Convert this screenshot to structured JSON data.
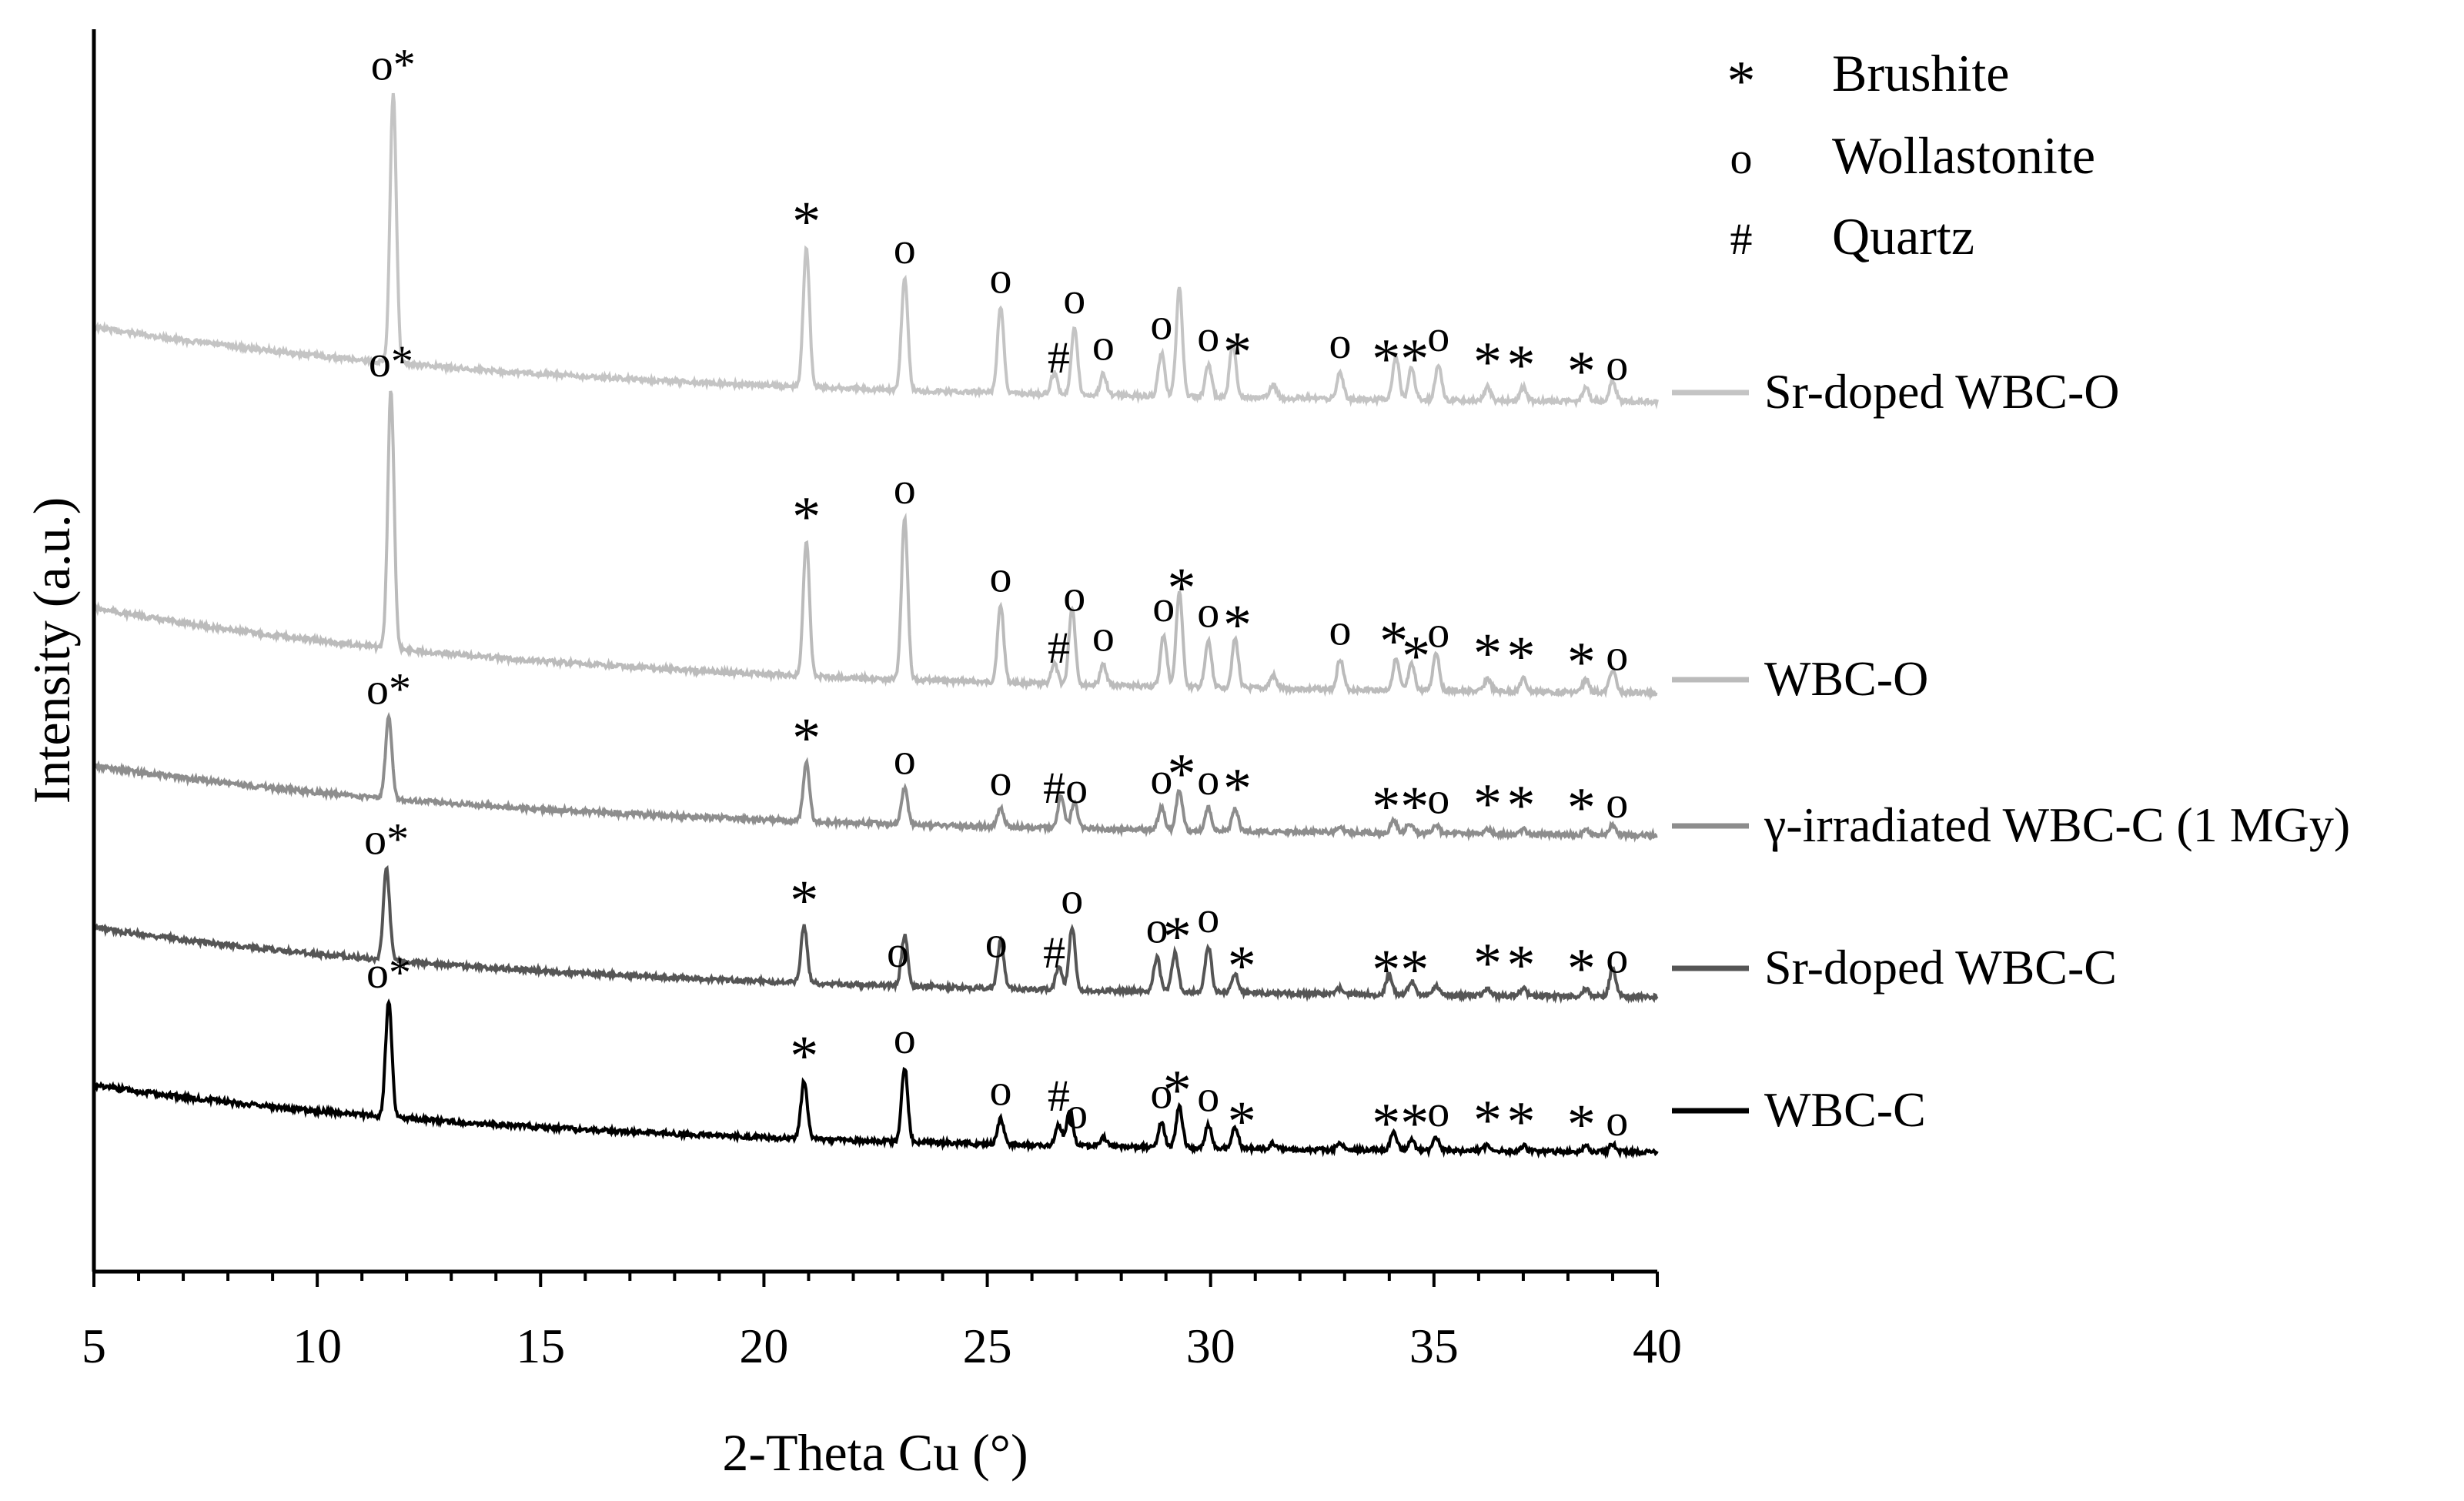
{
  "chart_data": {
    "type": "line",
    "title": "",
    "xlabel": "2-Theta Cu (°)",
    "ylabel": "Intensity (a.u.)",
    "xlim": [
      5,
      40
    ],
    "xticks": [
      5,
      10,
      15,
      20,
      25,
      30,
      35,
      40
    ],
    "xtick_labels": [
      "5",
      "10",
      "15",
      "20",
      "25",
      "30",
      "35",
      "40"
    ],
    "legend": [
      {
        "symbol": "*",
        "label": "Brushite"
      },
      {
        "symbol": "o",
        "label": "Wollastonite"
      },
      {
        "symbol": "#",
        "label": "Quartz"
      }
    ],
    "series": [
      {
        "name": "Sr-doped WBC-O",
        "color": "#c4c4c4",
        "peaks": [
          [
            11.7,
            1.0
          ],
          [
            20.95,
            0.52
          ],
          [
            23.15,
            0.42
          ],
          [
            25.3,
            0.32
          ],
          [
            26.5,
            0.08
          ],
          [
            26.95,
            0.25
          ],
          [
            27.6,
            0.08
          ],
          [
            28.9,
            0.16
          ],
          [
            29.3,
            0.4
          ],
          [
            29.95,
            0.12
          ],
          [
            30.5,
            0.21
          ],
          [
            31.4,
            0.05
          ],
          [
            32.9,
            0.1
          ],
          [
            34.15,
            0.16
          ],
          [
            34.5,
            0.12
          ],
          [
            35.1,
            0.13
          ],
          [
            36.2,
            0.05
          ],
          [
            37.0,
            0.05
          ],
          [
            38.4,
            0.05
          ],
          [
            39.0,
            0.08
          ]
        ],
        "marks": [
          [
            "o*",
            11.7
          ],
          [
            "*",
            20.95
          ],
          [
            "o",
            23.15
          ],
          [
            "o",
            25.3
          ],
          [
            "#",
            26.6
          ],
          [
            "o",
            26.95
          ],
          [
            "o",
            27.6
          ],
          [
            "o",
            28.9
          ],
          [
            "o",
            29.95
          ],
          [
            "*",
            30.6
          ],
          [
            "o",
            32.9
          ],
          [
            "**",
            34.25
          ],
          [
            "o",
            35.1
          ],
          [
            "*",
            36.2
          ],
          [
            "*",
            36.95
          ],
          [
            "*",
            38.3
          ],
          [
            "o",
            39.1
          ]
        ]
      },
      {
        "name": "WBC-O",
        "color": "#bbbbbb",
        "peaks": [
          [
            11.65,
            1.0
          ],
          [
            20.95,
            0.52
          ],
          [
            23.15,
            0.63
          ],
          [
            25.3,
            0.3
          ],
          [
            26.5,
            0.08
          ],
          [
            26.9,
            0.3
          ],
          [
            27.6,
            0.08
          ],
          [
            28.95,
            0.2
          ],
          [
            29.3,
            0.37
          ],
          [
            29.95,
            0.18
          ],
          [
            30.55,
            0.19
          ],
          [
            31.4,
            0.05
          ],
          [
            32.9,
            0.12
          ],
          [
            34.15,
            0.12
          ],
          [
            34.5,
            0.1
          ],
          [
            35.05,
            0.15
          ],
          [
            36.2,
            0.05
          ],
          [
            37.0,
            0.05
          ],
          [
            38.4,
            0.05
          ],
          [
            39.0,
            0.09
          ]
        ],
        "marks": [
          [
            "o*",
            11.65
          ],
          [
            "*",
            20.95
          ],
          [
            "o",
            23.15
          ],
          [
            "o",
            25.3
          ],
          [
            "#",
            26.6
          ],
          [
            "o",
            26.95
          ],
          [
            "o",
            27.6
          ],
          [
            "o",
            28.95
          ],
          [
            "*",
            29.35
          ],
          [
            "o",
            29.95
          ],
          [
            "*",
            30.6
          ],
          [
            "o",
            32.9
          ],
          [
            "*",
            34.1
          ],
          [
            "*",
            34.6
          ],
          [
            "o",
            35.1
          ],
          [
            "*",
            36.2
          ],
          [
            "*",
            36.95
          ],
          [
            "*",
            38.3
          ],
          [
            "o",
            39.1
          ]
        ]
      },
      {
        "name": "γ-irradiated WBC-C (1 MGy)",
        "color": "#8d8d8d",
        "peaks": [
          [
            11.6,
            1.0
          ],
          [
            20.95,
            0.72
          ],
          [
            23.15,
            0.45
          ],
          [
            25.3,
            0.22
          ],
          [
            26.65,
            0.38
          ],
          [
            26.95,
            0.32
          ],
          [
            28.9,
            0.28
          ],
          [
            29.3,
            0.5
          ],
          [
            29.95,
            0.28
          ],
          [
            30.55,
            0.28
          ],
          [
            32.9,
            0.06
          ],
          [
            34.1,
            0.16
          ],
          [
            34.45,
            0.13
          ],
          [
            35.05,
            0.1
          ],
          [
            36.2,
            0.06
          ],
          [
            37.0,
            0.06
          ],
          [
            38.4,
            0.06
          ],
          [
            39.0,
            0.12
          ]
        ],
        "marks": [
          [
            "o*",
            11.6
          ],
          [
            "*",
            20.95
          ],
          [
            "o",
            23.15
          ],
          [
            "o",
            25.3
          ],
          [
            "#o",
            26.75
          ],
          [
            "o",
            28.9
          ],
          [
            "*",
            29.35
          ],
          [
            "o",
            29.95
          ],
          [
            "*",
            30.6
          ],
          [
            "**",
            34.25
          ],
          [
            "o",
            35.1
          ],
          [
            "*",
            36.2
          ],
          [
            "*",
            36.95
          ],
          [
            "*",
            38.3
          ],
          [
            "o",
            39.1
          ]
        ]
      },
      {
        "name": "Sr-doped WBC-C",
        "color": "#555555",
        "peaks": [
          [
            11.55,
            1.0
          ],
          [
            20.9,
            0.62
          ],
          [
            23.15,
            0.55
          ],
          [
            25.3,
            0.52
          ],
          [
            26.6,
            0.25
          ],
          [
            26.9,
            0.68
          ],
          [
            28.8,
            0.38
          ],
          [
            29.2,
            0.42
          ],
          [
            29.95,
            0.5
          ],
          [
            30.55,
            0.2
          ],
          [
            32.9,
            0.06
          ],
          [
            34.0,
            0.22
          ],
          [
            34.5,
            0.15
          ],
          [
            35.05,
            0.1
          ],
          [
            36.2,
            0.08
          ],
          [
            37.0,
            0.08
          ],
          [
            38.4,
            0.08
          ],
          [
            39.0,
            0.3
          ]
        ],
        "marks": [
          [
            "o*",
            11.55
          ],
          [
            "*",
            20.9
          ],
          [
            "o",
            23.0
          ],
          [
            "o",
            25.2
          ],
          [
            "#",
            26.5
          ],
          [
            "o",
            26.9
          ],
          [
            "o",
            28.8
          ],
          [
            "*",
            29.25
          ],
          [
            "o",
            29.95
          ],
          [
            "*",
            30.7
          ],
          [
            "**",
            34.25
          ],
          [
            "*",
            36.2
          ],
          [
            "*",
            36.95
          ],
          [
            "*",
            38.3
          ],
          [
            "o",
            39.1
          ]
        ]
      },
      {
        "name": "WBC-C",
        "color": "#000000",
        "peaks": [
          [
            11.6,
            1.0
          ],
          [
            20.9,
            0.5
          ],
          [
            23.15,
            0.65
          ],
          [
            25.3,
            0.22
          ],
          [
            26.6,
            0.18
          ],
          [
            26.85,
            0.32
          ],
          [
            27.6,
            0.08
          ],
          [
            28.9,
            0.22
          ],
          [
            29.3,
            0.36
          ],
          [
            29.95,
            0.2
          ],
          [
            30.55,
            0.18
          ],
          [
            31.4,
            0.05
          ],
          [
            32.9,
            0.06
          ],
          [
            34.1,
            0.15
          ],
          [
            34.5,
            0.1
          ],
          [
            35.05,
            0.12
          ],
          [
            36.2,
            0.05
          ],
          [
            37.0,
            0.05
          ],
          [
            38.4,
            0.05
          ],
          [
            39.0,
            0.07
          ]
        ],
        "marks": [
          [
            "o*",
            11.6
          ],
          [
            "*",
            20.9
          ],
          [
            "o",
            23.15
          ],
          [
            "o",
            25.3
          ],
          [
            "#",
            26.6
          ],
          [
            "o",
            27.0
          ],
          [
            "o",
            28.9
          ],
          [
            "*",
            29.25
          ],
          [
            "o",
            29.95
          ],
          [
            "*",
            30.7
          ],
          [
            "**",
            34.25
          ],
          [
            "o",
            35.1
          ],
          [
            "*",
            36.2
          ],
          [
            "*",
            36.95
          ],
          [
            "*",
            38.3
          ],
          [
            "o",
            39.1
          ]
        ]
      }
    ]
  }
}
